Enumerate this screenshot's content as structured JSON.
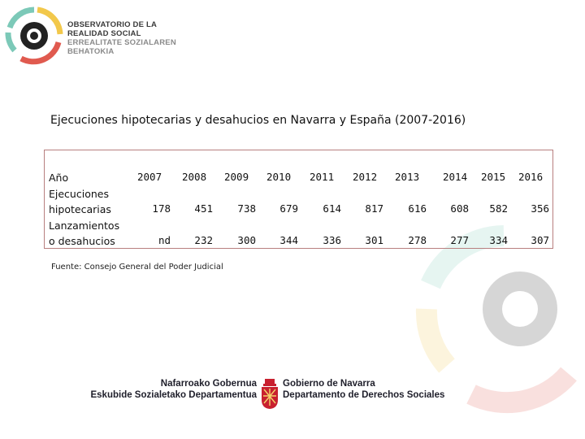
{
  "header": {
    "org_line1": "OBSERVATORIO DE LA",
    "org_line2": "REALIDAD SOCIAL",
    "org_line3": "ERREALITATE SOZIALAREN",
    "org_line4": "BEHATOKIA"
  },
  "title": "Ejecuciones hipotecarias y desahucios en Navarra y España (2007-2016)",
  "table": {
    "header_label": "Año",
    "years": [
      "2007",
      "2008",
      "2009",
      "2010",
      "2011",
      "2012",
      "2013",
      "2014",
      "2015",
      "2016"
    ],
    "rows": [
      {
        "label_line1": "Ejecuciones",
        "label_line2": "hipotecarias",
        "values": [
          "178",
          "451",
          "738",
          "679",
          "614",
          "817",
          "616",
          "608",
          "582",
          "356"
        ]
      },
      {
        "label_line1": "Lanzamientos",
        "label_line2": "o desahucios",
        "values": [
          "nd",
          "232",
          "300",
          "344",
          "336",
          "301",
          "278",
          "277",
          "334",
          "307"
        ]
      }
    ]
  },
  "source": "Fuente: Consejo General del Poder Judicial",
  "footer": {
    "left_line1": "Nafarroako Gobernua",
    "left_line2": "Eskubide Sozialetako Departamentua",
    "right_line1": "Gobierno de Navarra",
    "right_line2": "Departamento de Derechos Sociales"
  },
  "colors": {
    "teal": "#7cc9b8",
    "yellow": "#f2c84b",
    "red": "#e05a4f",
    "black": "#222222",
    "table_border": "#b87f7f"
  }
}
